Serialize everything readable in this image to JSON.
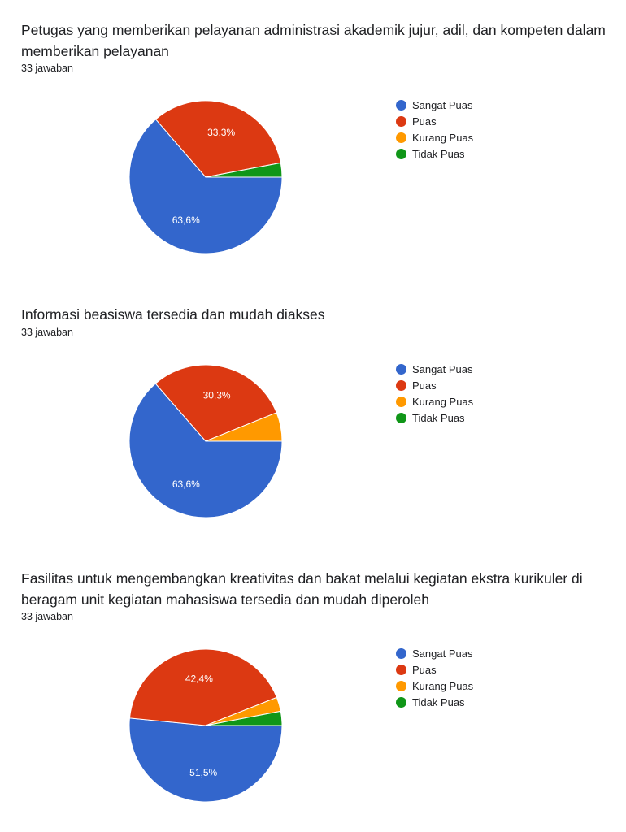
{
  "colors": {
    "Sangat Puas": "#3366cc",
    "Puas": "#dc3912",
    "Kurang Puas": "#ff9900",
    "Tidak Puas": "#109618"
  },
  "questions": [
    {
      "title": "Petugas yang memberikan pelayanan administrasi akademik jujur, adil, dan kompeten dalam memberikan pelayanan",
      "count": "33 jawaban"
    },
    {
      "title": " Informasi beasiswa tersedia dan mudah diakses",
      "count": "33 jawaban"
    },
    {
      "title": "Fasilitas untuk mengembangkan kreativitas dan bakat melalui kegiatan ekstra kurikuler di beragam unit kegiatan mahasiswa tersedia dan mudah diperoleh",
      "count": "33 jawaban"
    }
  ],
  "chart_data": [
    {
      "type": "pie",
      "title": "Petugas yang memberikan pelayanan administrasi akademik jujur, adil, dan kompeten dalam memberikan pelayanan",
      "categories": [
        "Sangat Puas",
        "Puas",
        "Kurang Puas",
        "Tidak Puas"
      ],
      "values": [
        63.6,
        33.3,
        0,
        3.0
      ],
      "labels": [
        "63,6%",
        "33,3%",
        "",
        ""
      ],
      "legend": "right"
    },
    {
      "type": "pie",
      "title": " Informasi beasiswa tersedia dan mudah diakses",
      "categories": [
        "Sangat Puas",
        "Puas",
        "Kurang Puas",
        "Tidak Puas"
      ],
      "values": [
        63.6,
        30.3,
        6.1,
        0
      ],
      "labels": [
        "63,6%",
        "30,3%",
        "",
        ""
      ],
      "legend": "right"
    },
    {
      "type": "pie",
      "title": "Fasilitas untuk mengembangkan kreativitas dan bakat melalui kegiatan ekstra kurikuler di beragam unit kegiatan mahasiswa tersedia dan mudah diperoleh",
      "categories": [
        "Sangat Puas",
        "Puas",
        "Kurang Puas",
        "Tidak Puas"
      ],
      "values": [
        51.5,
        42.4,
        3.0,
        3.0
      ],
      "labels": [
        "51,5%",
        "42,4%",
        "",
        ""
      ],
      "legend": "right"
    }
  ]
}
